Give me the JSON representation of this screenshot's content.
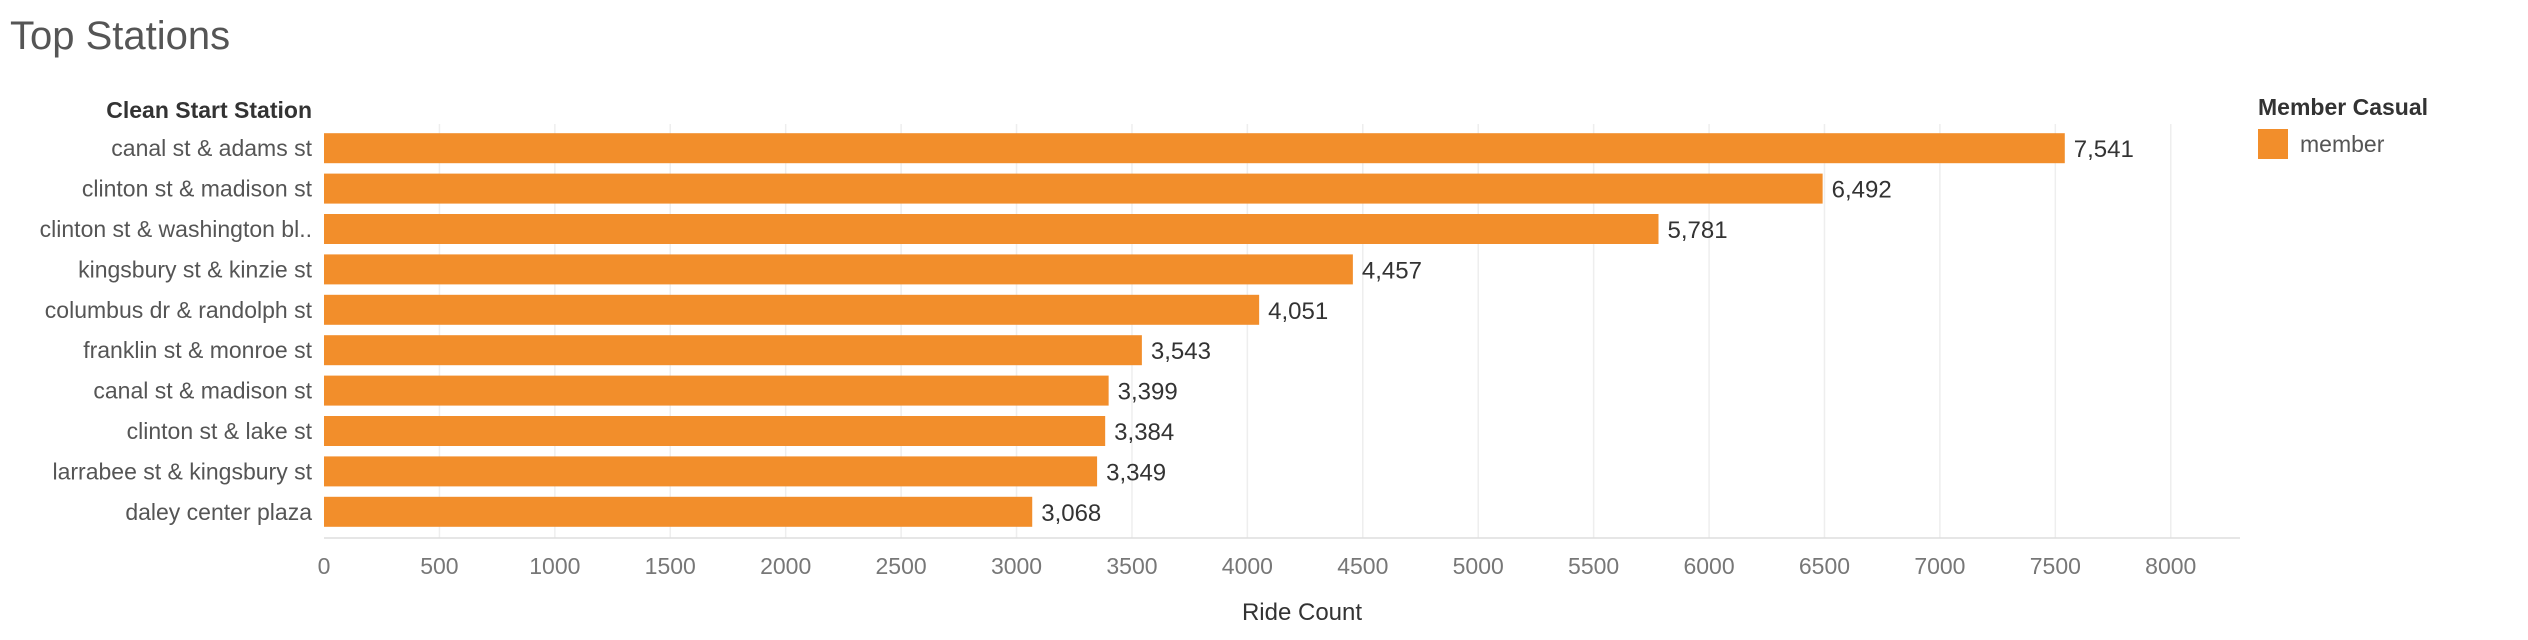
{
  "colors": {
    "bar": "#F28E2B",
    "grid": "#EEEEEE",
    "axis": "#DDDDDD"
  },
  "chart_data": {
    "type": "bar",
    "orientation": "horizontal",
    "title": "Top Stations",
    "row_header": "Clean Start Station",
    "categories": [
      "canal st & adams st",
      "clinton st & madison st",
      "clinton st & washington bl..",
      "kingsbury st & kinzie st",
      "columbus dr & randolph st",
      "franklin st & monroe st",
      "canal st & madison st",
      "clinton st & lake st",
      "larrabee st & kingsbury st",
      "daley center plaza"
    ],
    "series": [
      {
        "name": "member",
        "values": [
          7541,
          6492,
          5781,
          4457,
          4051,
          3543,
          3399,
          3384,
          3349,
          3068
        ],
        "value_labels": [
          "7,541",
          "6,492",
          "5,781",
          "4,457",
          "4,051",
          "3,543",
          "3,399",
          "3,384",
          "3,349",
          "3,068"
        ]
      }
    ],
    "xlabel": "Ride Count",
    "xlim": [
      0,
      8300
    ],
    "x_ticks": [
      0,
      500,
      1000,
      1500,
      2000,
      2500,
      3000,
      3500,
      4000,
      4500,
      5000,
      5500,
      6000,
      6500,
      7000,
      7500,
      8000
    ],
    "grid": true,
    "legend": {
      "title": "Member Casual",
      "position": "top-right",
      "entries": [
        "member"
      ]
    }
  }
}
